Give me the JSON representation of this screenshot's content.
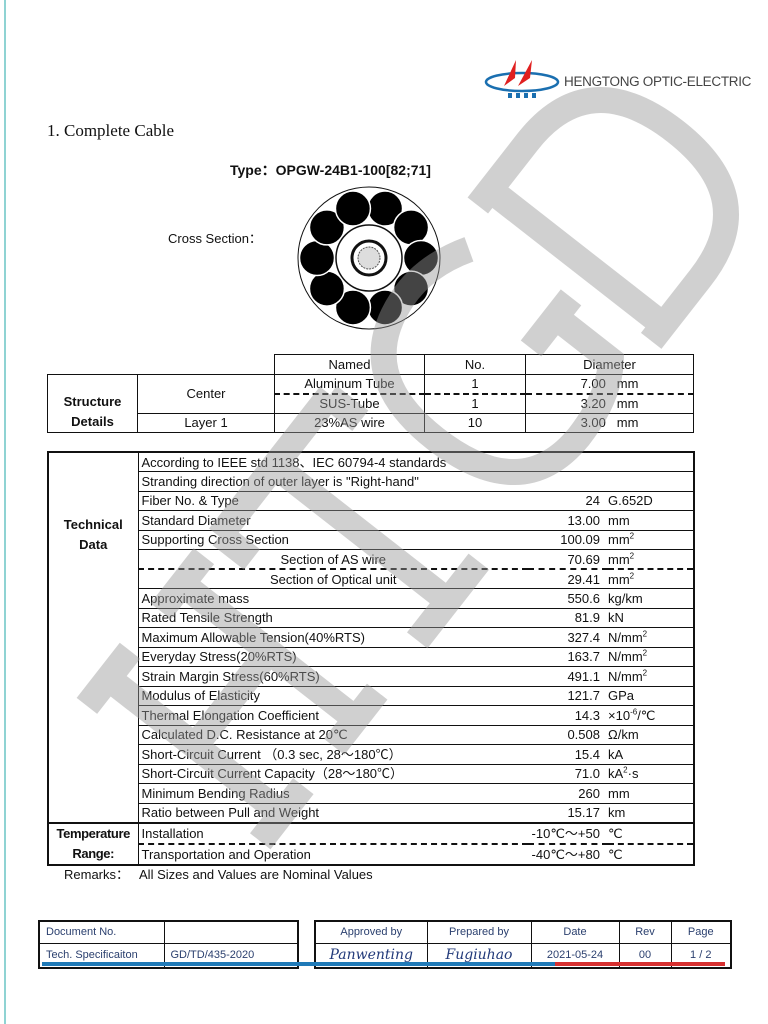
{
  "header": {
    "logo_mark": "HTGD",
    "brand": "HENGTONG OPTIC-ELECTRIC",
    "colors": {
      "logo_red": "#e02020",
      "logo_blue": "#1a6fb0"
    }
  },
  "title": "1.  Complete Cable",
  "type_line": "Type：OPGW-24B1-100[82;71]",
  "cross_section_label": "Cross Section：",
  "structure": {
    "label_line1": "Structure",
    "label_line2": "Details",
    "headers": [
      "Named",
      "No.",
      "Diameter"
    ],
    "rows": [
      {
        "group": "Center",
        "name": "Aluminum Tube",
        "no": "1",
        "dia": "7.00",
        "unit": "mm"
      },
      {
        "group": "",
        "name": "SUS-Tube",
        "no": "1",
        "dia": "3.20",
        "unit": "mm"
      },
      {
        "group": "Layer 1",
        "name": "23%AS wire",
        "no": "10",
        "dia": "3.00",
        "unit": "mm"
      }
    ]
  },
  "technical": {
    "label_line1": "Technical",
    "label_line2": "Data",
    "full_rows": [
      "According to IEEE std 1138、IEC 60794-4 standards",
      "Stranding direction of outer layer is \"Right-hand\""
    ],
    "rows": [
      {
        "name": "Fiber No. & Type",
        "value": "24",
        "unit": "G.652D",
        "sup": ""
      },
      {
        "name": "Standard Diameter",
        "value": "13.00",
        "unit": "mm",
        "sup": ""
      },
      {
        "name": "Supporting Cross Section",
        "value": "100.09",
        "unit": "mm",
        "sup": "2"
      },
      {
        "name": "Section of AS wire",
        "value": "70.69",
        "unit": "mm",
        "sup": "2"
      },
      {
        "name": "Section of Optical unit",
        "value": "29.41",
        "unit": "mm",
        "sup": "2"
      },
      {
        "name": "Approximate mass",
        "value": "550.6",
        "unit": "kg/km",
        "sup": ""
      },
      {
        "name": "Rated Tensile Strength",
        "value": "81.9",
        "unit": "kN",
        "sup": ""
      },
      {
        "name": "Maximum Allowable Tension(40%RTS)",
        "value": "327.4",
        "unit": "N/mm",
        "sup": "2"
      },
      {
        "name": "Everyday Stress(20%RTS)",
        "value": "163.7",
        "unit": "N/mm",
        "sup": "2"
      },
      {
        "name": "Strain Margin Stress(60%RTS)",
        "value": "491.1",
        "unit": "N/mm",
        "sup": "2"
      },
      {
        "name": "Modulus of Elasticity",
        "value": "121.7",
        "unit": "GPa",
        "sup": ""
      },
      {
        "name": "Thermal Elongation Coefficient",
        "value": "14.3",
        "unit": "×10",
        "sup": "-6",
        "unit_after": "/℃"
      },
      {
        "name": "Calculated D.C. Resistance at 20℃",
        "value": "0.508",
        "unit": "Ω/km",
        "sup": ""
      },
      {
        "name": "Short-Circuit Current （0.3 sec, 28～180℃）",
        "value": "15.4",
        "unit": "kA",
        "sup": ""
      },
      {
        "name": "Short-Circuit Current Capacity（28～180℃）",
        "value": "71.0",
        "unit": "kA",
        "sup": "2",
        "unit_after": "·s"
      },
      {
        "name": "Minimum Bending Radius",
        "value": "260",
        "unit": "mm",
        "sup": ""
      },
      {
        "name": "Ratio between Pull and Weight",
        "value": "15.17",
        "unit": "km",
        "sup": ""
      }
    ]
  },
  "temperature": {
    "label_line1": "Temperature",
    "label_line2": "Range:",
    "rows": [
      {
        "name": "Installation",
        "value": "-10℃～+50",
        "unit": "℃"
      },
      {
        "name": "Transportation and Operation",
        "value": "-40℃～+80",
        "unit": "℃"
      }
    ]
  },
  "remarks": {
    "label": "Remarks：",
    "text": "All Sizes and Values are Nominal Values"
  },
  "footer": {
    "doc_no_label": "Document No.",
    "doc_type": "Tech. Specificaiton",
    "doc_no": "GD/TD/435-2020",
    "headers": [
      "Approved by",
      "Prepared by",
      "Date",
      "Rev",
      "Page"
    ],
    "approved_by": "Panwenting",
    "prepared_by": "Fugiuhao",
    "date": "2021-05-24",
    "rev": "00",
    "page": "1 / 2",
    "colors": {
      "blue_bar": "#1f7ab8",
      "red_bar": "#d63030"
    }
  },
  "watermark": "HTGD"
}
